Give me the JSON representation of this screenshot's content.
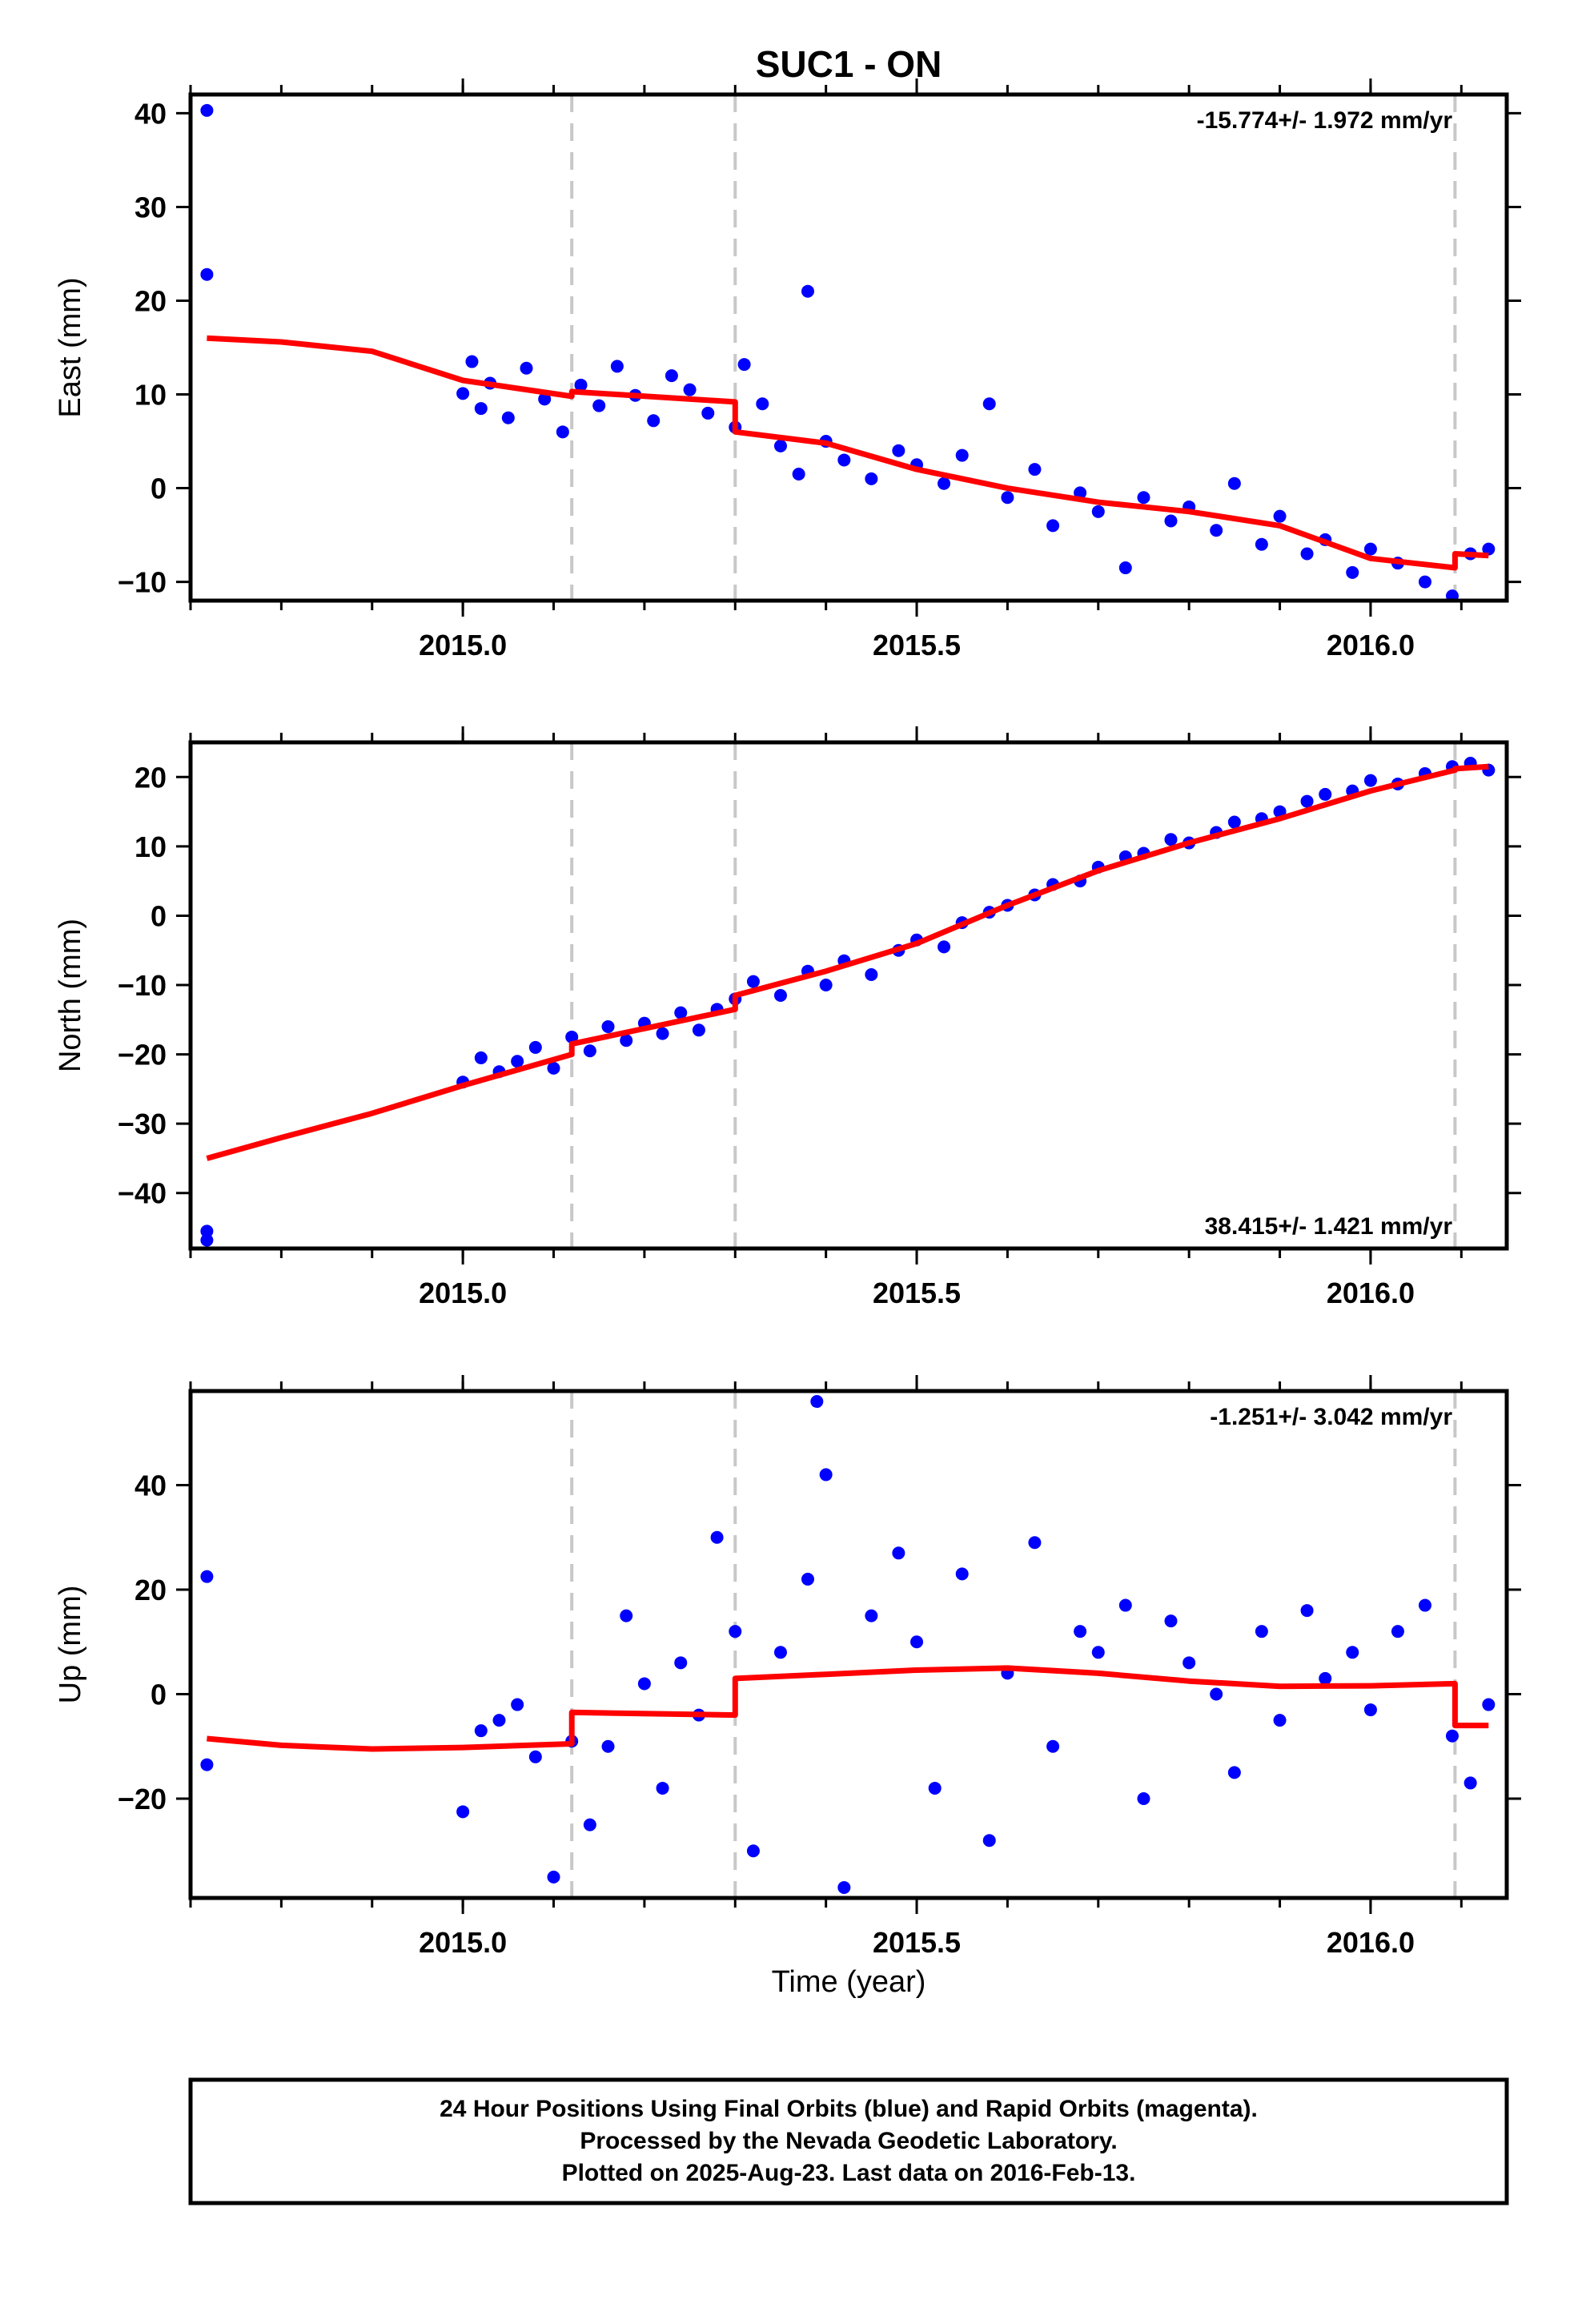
{
  "chart_data": {
    "type": "scatter",
    "title": "SUC1 - ON",
    "xlabel": "Time (year)",
    "xlim": [
      2014.7,
      2016.15
    ],
    "x_ticks": [
      2015.0,
      2015.5,
      2016.0
    ],
    "x_tick_labels": [
      "2015.0",
      "2015.5",
      "2016.0"
    ],
    "event_lines_x": [
      2015.12,
      2015.3,
      2016.093
    ],
    "colors": {
      "points": "#0000ff",
      "model": "#ff0000",
      "event_lines": "#c8c8c8"
    },
    "panels": [
      {
        "ylabel": "East (mm)",
        "rate": "-15.774+/- 1.972 mm/yr",
        "rate_position": "top-right",
        "ylim": [
          -12,
          42
        ],
        "y_ticks": [
          -10,
          0,
          10,
          20,
          30,
          40
        ],
        "y_tick_labels": [
          "−10",
          "0",
          "10",
          "20",
          "30",
          "40"
        ],
        "points": [
          [
            2014.718,
            40.3
          ],
          [
            2014.718,
            22.8
          ],
          [
            2015.0,
            10.1
          ],
          [
            2015.01,
            13.5
          ],
          [
            2015.02,
            8.5
          ],
          [
            2015.03,
            11.2
          ],
          [
            2015.05,
            7.5
          ],
          [
            2015.07,
            12.8
          ],
          [
            2015.09,
            9.5
          ],
          [
            2015.11,
            6.0
          ],
          [
            2015.13,
            11.0
          ],
          [
            2015.15,
            8.8
          ],
          [
            2015.17,
            13.0
          ],
          [
            2015.19,
            9.9
          ],
          [
            2015.21,
            7.2
          ],
          [
            2015.23,
            12.0
          ],
          [
            2015.25,
            10.5
          ],
          [
            2015.27,
            8.0
          ],
          [
            2015.3,
            6.5
          ],
          [
            2015.31,
            13.2
          ],
          [
            2015.33,
            9.0
          ],
          [
            2015.35,
            4.5
          ],
          [
            2015.37,
            1.5
          ],
          [
            2015.38,
            21.0
          ],
          [
            2015.4,
            5.0
          ],
          [
            2015.42,
            3.0
          ],
          [
            2015.45,
            1.0
          ],
          [
            2015.48,
            4.0
          ],
          [
            2015.5,
            2.5
          ],
          [
            2015.53,
            0.5
          ],
          [
            2015.55,
            3.5
          ],
          [
            2015.58,
            9.0
          ],
          [
            2015.6,
            -1.0
          ],
          [
            2015.63,
            2.0
          ],
          [
            2015.65,
            -4.0
          ],
          [
            2015.68,
            -0.5
          ],
          [
            2015.7,
            -2.5
          ],
          [
            2015.73,
            -8.5
          ],
          [
            2015.75,
            -1.0
          ],
          [
            2015.78,
            -3.5
          ],
          [
            2015.8,
            -2.0
          ],
          [
            2015.83,
            -4.5
          ],
          [
            2015.85,
            0.5
          ],
          [
            2015.88,
            -6.0
          ],
          [
            2015.9,
            -3.0
          ],
          [
            2015.93,
            -7.0
          ],
          [
            2015.95,
            -5.5
          ],
          [
            2015.98,
            -9.0
          ],
          [
            2016.0,
            -6.5
          ],
          [
            2016.03,
            -8.0
          ],
          [
            2016.06,
            -10.0
          ],
          [
            2016.09,
            -11.5
          ],
          [
            2016.11,
            -7.0
          ],
          [
            2016.13,
            -6.5
          ]
        ],
        "model": [
          [
            2014.718,
            16.0
          ],
          [
            2014.8,
            15.6
          ],
          [
            2014.9,
            14.6
          ],
          [
            2015.0,
            11.5
          ],
          [
            2015.12,
            9.8
          ],
          [
            2015.12,
            10.3
          ],
          [
            2015.3,
            9.2
          ],
          [
            2015.3,
            6.0
          ],
          [
            2015.4,
            4.8
          ],
          [
            2015.5,
            2.0
          ],
          [
            2015.6,
            0.0
          ],
          [
            2015.7,
            -1.5
          ],
          [
            2015.8,
            -2.5
          ],
          [
            2015.9,
            -4.0
          ],
          [
            2016.0,
            -7.5
          ],
          [
            2016.093,
            -8.5
          ],
          [
            2016.093,
            -7.0
          ],
          [
            2016.13,
            -7.2
          ]
        ]
      },
      {
        "ylabel": "North (mm)",
        "rate": "38.415+/- 1.421 mm/yr",
        "rate_position": "bottom-right",
        "ylim": [
          -48,
          25
        ],
        "y_ticks": [
          -40,
          -30,
          -20,
          -10,
          0,
          10,
          20
        ],
        "y_tick_labels": [
          "−40",
          "−30",
          "−20",
          "−10",
          "0",
          "10",
          "20"
        ],
        "points": [
          [
            2014.718,
            -45.5
          ],
          [
            2014.718,
            -46.8
          ],
          [
            2015.0,
            -24.0
          ],
          [
            2015.02,
            -20.5
          ],
          [
            2015.04,
            -22.5
          ],
          [
            2015.06,
            -21.0
          ],
          [
            2015.08,
            -19.0
          ],
          [
            2015.1,
            -22.0
          ],
          [
            2015.12,
            -17.5
          ],
          [
            2015.14,
            -19.5
          ],
          [
            2015.16,
            -16.0
          ],
          [
            2015.18,
            -18.0
          ],
          [
            2015.2,
            -15.5
          ],
          [
            2015.22,
            -17.0
          ],
          [
            2015.24,
            -14.0
          ],
          [
            2015.26,
            -16.5
          ],
          [
            2015.28,
            -13.5
          ],
          [
            2015.3,
            -12.0
          ],
          [
            2015.32,
            -9.5
          ],
          [
            2015.35,
            -11.5
          ],
          [
            2015.38,
            -8.0
          ],
          [
            2015.4,
            -10.0
          ],
          [
            2015.42,
            -6.5
          ],
          [
            2015.45,
            -8.5
          ],
          [
            2015.48,
            -5.0
          ],
          [
            2015.5,
            -3.5
          ],
          [
            2015.53,
            -4.5
          ],
          [
            2015.55,
            -1.0
          ],
          [
            2015.58,
            0.5
          ],
          [
            2015.6,
            1.5
          ],
          [
            2015.63,
            3.0
          ],
          [
            2015.65,
            4.5
          ],
          [
            2015.68,
            5.0
          ],
          [
            2015.7,
            7.0
          ],
          [
            2015.73,
            8.5
          ],
          [
            2015.75,
            9.0
          ],
          [
            2015.78,
            11.0
          ],
          [
            2015.8,
            10.5
          ],
          [
            2015.83,
            12.0
          ],
          [
            2015.85,
            13.5
          ],
          [
            2015.88,
            14.0
          ],
          [
            2015.9,
            15.0
          ],
          [
            2015.93,
            16.5
          ],
          [
            2015.95,
            17.5
          ],
          [
            2015.98,
            18.0
          ],
          [
            2016.0,
            19.5
          ],
          [
            2016.03,
            19.0
          ],
          [
            2016.06,
            20.5
          ],
          [
            2016.09,
            21.5
          ],
          [
            2016.11,
            22.0
          ],
          [
            2016.13,
            21.0
          ]
        ],
        "model": [
          [
            2014.718,
            -35.0
          ],
          [
            2014.8,
            -32.0
          ],
          [
            2014.9,
            -28.5
          ],
          [
            2015.0,
            -24.5
          ],
          [
            2015.12,
            -20.0
          ],
          [
            2015.12,
            -18.5
          ],
          [
            2015.3,
            -13.5
          ],
          [
            2015.3,
            -11.5
          ],
          [
            2015.4,
            -8.0
          ],
          [
            2015.5,
            -4.0
          ],
          [
            2015.6,
            1.5
          ],
          [
            2015.7,
            6.5
          ],
          [
            2015.8,
            10.5
          ],
          [
            2015.9,
            14.0
          ],
          [
            2016.0,
            18.0
          ],
          [
            2016.093,
            21.0
          ],
          [
            2016.093,
            21.2
          ],
          [
            2016.13,
            21.5
          ]
        ]
      },
      {
        "ylabel": "Up (mm)",
        "rate": "-1.251+/- 3.042 mm/yr",
        "rate_position": "top-right",
        "ylim": [
          -39,
          58
        ],
        "y_ticks": [
          -20,
          0,
          20,
          40
        ],
        "y_tick_labels": [
          "−20",
          "0",
          "20",
          "40"
        ],
        "points": [
          [
            2014.718,
            22.5
          ],
          [
            2014.718,
            -13.5
          ],
          [
            2015.0,
            -22.5
          ],
          [
            2015.02,
            -7.0
          ],
          [
            2015.04,
            -5.0
          ],
          [
            2015.06,
            -2.0
          ],
          [
            2015.08,
            -12.0
          ],
          [
            2015.1,
            -35.0
          ],
          [
            2015.12,
            -9.0
          ],
          [
            2015.14,
            -25.0
          ],
          [
            2015.16,
            -10.0
          ],
          [
            2015.18,
            15.0
          ],
          [
            2015.2,
            2.0
          ],
          [
            2015.22,
            -18.0
          ],
          [
            2015.24,
            6.0
          ],
          [
            2015.26,
            -4.0
          ],
          [
            2015.28,
            30.0
          ],
          [
            2015.3,
            12.0
          ],
          [
            2015.32,
            -30.0
          ],
          [
            2015.35,
            8.0
          ],
          [
            2015.38,
            22.0
          ],
          [
            2015.39,
            56.0
          ],
          [
            2015.4,
            42.0
          ],
          [
            2015.42,
            -37.0
          ],
          [
            2015.45,
            15.0
          ],
          [
            2015.48,
            27.0
          ],
          [
            2015.5,
            10.0
          ],
          [
            2015.52,
            -18.0
          ],
          [
            2015.55,
            23.0
          ],
          [
            2015.58,
            -28.0
          ],
          [
            2015.6,
            4.0
          ],
          [
            2015.63,
            29.0
          ],
          [
            2015.65,
            -10.0
          ],
          [
            2015.68,
            12.0
          ],
          [
            2015.7,
            8.0
          ],
          [
            2015.73,
            17.0
          ],
          [
            2015.75,
            -20.0
          ],
          [
            2015.78,
            14.0
          ],
          [
            2015.8,
            6.0
          ],
          [
            2015.83,
            0.0
          ],
          [
            2015.85,
            -15.0
          ],
          [
            2015.88,
            12.0
          ],
          [
            2015.9,
            -5.0
          ],
          [
            2015.93,
            16.0
          ],
          [
            2015.95,
            3.0
          ],
          [
            2015.98,
            8.0
          ],
          [
            2016.0,
            -3.0
          ],
          [
            2016.03,
            12.0
          ],
          [
            2016.06,
            17.0
          ],
          [
            2016.09,
            -8.0
          ],
          [
            2016.11,
            -17.0
          ],
          [
            2016.13,
            -2.0
          ]
        ],
        "model": [
          [
            2014.718,
            -8.5
          ],
          [
            2014.8,
            -9.8
          ],
          [
            2014.9,
            -10.5
          ],
          [
            2015.0,
            -10.2
          ],
          [
            2015.12,
            -9.5
          ],
          [
            2015.12,
            -3.5
          ],
          [
            2015.3,
            -4.0
          ],
          [
            2015.3,
            3.0
          ],
          [
            2015.4,
            3.8
          ],
          [
            2015.5,
            4.6
          ],
          [
            2015.6,
            5.0
          ],
          [
            2015.7,
            4.0
          ],
          [
            2015.8,
            2.5
          ],
          [
            2015.9,
            1.5
          ],
          [
            2016.0,
            1.6
          ],
          [
            2016.093,
            2.0
          ],
          [
            2016.093,
            -6.0
          ],
          [
            2016.13,
            -6.0
          ]
        ]
      }
    ]
  },
  "footer": {
    "line1": "24 Hour Positions Using Final Orbits (blue) and Rapid Orbits (magenta).",
    "line2": "Processed by the Nevada Geodetic Laboratory.",
    "line3": "Plotted on 2025-Aug-23. Last data on 2016-Feb-13."
  }
}
